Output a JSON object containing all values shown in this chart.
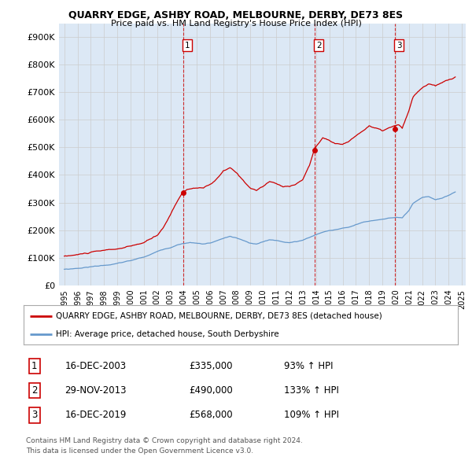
{
  "title": "QUARRY EDGE, ASHBY ROAD, MELBOURNE, DERBY, DE73 8ES",
  "subtitle": "Price paid vs. HM Land Registry's House Price Index (HPI)",
  "red_label": "QUARRY EDGE, ASHBY ROAD, MELBOURNE, DERBY, DE73 8ES (detached house)",
  "blue_label": "HPI: Average price, detached house, South Derbyshire",
  "footer1": "Contains HM Land Registry data © Crown copyright and database right 2024.",
  "footer2": "This data is licensed under the Open Government Licence v3.0.",
  "transactions": [
    {
      "num": 1,
      "date": "16-DEC-2003",
      "price": "£335,000",
      "pct": "93% ↑ HPI",
      "year": 2003.96
    },
    {
      "num": 2,
      "date": "29-NOV-2013",
      "price": "£490,000",
      "pct": "133% ↑ HPI",
      "year": 2013.91
    },
    {
      "num": 3,
      "date": "16-DEC-2019",
      "price": "£568,000",
      "pct": "109% ↑ HPI",
      "year": 2019.96
    }
  ],
  "ylim": [
    0,
    950000
  ],
  "yticks": [
    0,
    100000,
    200000,
    300000,
    400000,
    500000,
    600000,
    700000,
    800000,
    900000
  ],
  "ytick_labels": [
    "£0",
    "£100K",
    "£200K",
    "£300K",
    "£400K",
    "£500K",
    "£600K",
    "£700K",
    "£800K",
    "£900K"
  ],
  "red_color": "#cc0000",
  "blue_color": "#6699cc",
  "dashed_color": "#cc0000",
  "grid_color": "#cccccc",
  "background_color": "#ffffff",
  "plot_bg_color": "#dce8f5",
  "red_x": [
    1995.0,
    1995.083,
    1995.167,
    1995.25,
    1995.333,
    1995.417,
    1995.5,
    1995.583,
    1995.667,
    1995.75,
    1995.833,
    1995.917,
    1996.0,
    1996.083,
    1996.167,
    1996.25,
    1996.333,
    1996.417,
    1996.5,
    1996.583,
    1996.667,
    1996.75,
    1996.833,
    1996.917,
    1997.0,
    1997.083,
    1997.167,
    1997.25,
    1997.333,
    1997.417,
    1997.5,
    1997.583,
    1997.667,
    1997.75,
    1997.833,
    1997.917,
    1998.0,
    1998.083,
    1998.167,
    1998.25,
    1998.333,
    1998.417,
    1998.5,
    1998.583,
    1998.667,
    1998.75,
    1998.833,
    1998.917,
    1999.0,
    1999.083,
    1999.167,
    1999.25,
    1999.333,
    1999.417,
    1999.5,
    1999.583,
    1999.667,
    1999.75,
    1999.833,
    1999.917,
    2000.0,
    2000.083,
    2000.167,
    2000.25,
    2000.333,
    2000.417,
    2000.5,
    2000.583,
    2000.667,
    2000.75,
    2000.833,
    2000.917,
    2001.0,
    2001.083,
    2001.167,
    2001.25,
    2001.333,
    2001.417,
    2001.5,
    2001.583,
    2001.667,
    2001.75,
    2001.833,
    2001.917,
    2002.0,
    2002.083,
    2002.167,
    2002.25,
    2002.333,
    2002.417,
    2002.5,
    2002.583,
    2002.667,
    2002.75,
    2002.833,
    2002.917,
    2003.0,
    2003.083,
    2003.167,
    2003.25,
    2003.333,
    2003.417,
    2003.5,
    2003.583,
    2003.667,
    2003.75,
    2003.833,
    2003.917,
    2003.96,
    2004.0,
    2004.083,
    2004.167,
    2004.25,
    2004.333,
    2004.417,
    2004.5,
    2004.583,
    2004.667,
    2004.75,
    2004.833,
    2004.917,
    2005.0,
    2005.083,
    2005.167,
    2005.25,
    2005.333,
    2005.417,
    2005.5,
    2005.583,
    2005.667,
    2005.75,
    2005.833,
    2005.917,
    2006.0,
    2006.083,
    2006.167,
    2006.25,
    2006.333,
    2006.417,
    2006.5,
    2006.583,
    2006.667,
    2006.75,
    2006.833,
    2006.917,
    2007.0,
    2007.083,
    2007.167,
    2007.25,
    2007.333,
    2007.417,
    2007.5,
    2007.583,
    2007.667,
    2007.75,
    2007.833,
    2007.917,
    2008.0,
    2008.083,
    2008.167,
    2008.25,
    2008.333,
    2008.417,
    2008.5,
    2008.583,
    2008.667,
    2008.75,
    2008.833,
    2008.917,
    2009.0,
    2009.083,
    2009.167,
    2009.25,
    2009.333,
    2009.417,
    2009.5,
    2009.583,
    2009.667,
    2009.75,
    2009.833,
    2009.917,
    2010.0,
    2010.083,
    2010.167,
    2010.25,
    2010.333,
    2010.417,
    2010.5,
    2010.583,
    2010.667,
    2010.75,
    2010.833,
    2010.917,
    2011.0,
    2011.083,
    2011.167,
    2011.25,
    2011.333,
    2011.417,
    2011.5,
    2011.583,
    2011.667,
    2011.75,
    2011.833,
    2011.917,
    2012.0,
    2012.083,
    2012.167,
    2012.25,
    2012.333,
    2012.417,
    2012.5,
    2012.583,
    2012.667,
    2012.75,
    2012.833,
    2012.917,
    2013.0,
    2013.083,
    2013.167,
    2013.25,
    2013.333,
    2013.417,
    2013.5,
    2013.583,
    2013.667,
    2013.75,
    2013.833,
    2013.917,
    2013.91,
    2014.0,
    2014.083,
    2014.167,
    2014.25,
    2014.333,
    2014.417,
    2014.5,
    2014.583,
    2014.667,
    2014.75,
    2014.833,
    2014.917,
    2015.0,
    2015.083,
    2015.167,
    2015.25,
    2015.333,
    2015.417,
    2015.5,
    2015.583,
    2015.667,
    2015.75,
    2015.833,
    2015.917,
    2016.0,
    2016.083,
    2016.167,
    2016.25,
    2016.333,
    2016.417,
    2016.5,
    2016.583,
    2016.667,
    2016.75,
    2016.833,
    2016.917,
    2017.0,
    2017.083,
    2017.167,
    2017.25,
    2017.333,
    2017.417,
    2017.5,
    2017.583,
    2017.667,
    2017.75,
    2017.833,
    2017.917,
    2018.0,
    2018.083,
    2018.167,
    2018.25,
    2018.333,
    2018.417,
    2018.5,
    2018.583,
    2018.667,
    2018.75,
    2018.833,
    2018.917,
    2019.0,
    2019.083,
    2019.167,
    2019.25,
    2019.333,
    2019.417,
    2019.5,
    2019.583,
    2019.667,
    2019.75,
    2019.833,
    2019.917,
    2019.96,
    2020.0,
    2020.083,
    2020.167,
    2020.25,
    2020.333,
    2020.417,
    2020.5,
    2020.583,
    2020.667,
    2020.75,
    2020.833,
    2020.917,
    2021.0,
    2021.083,
    2021.167,
    2021.25,
    2021.333,
    2021.417,
    2021.5,
    2021.583,
    2021.667,
    2021.75,
    2021.833,
    2021.917,
    2022.0,
    2022.083,
    2022.167,
    2022.25,
    2022.333,
    2022.417,
    2022.5,
    2022.583,
    2022.667,
    2022.75,
    2022.833,
    2022.917,
    2023.0,
    2023.083,
    2023.167,
    2023.25,
    2023.333,
    2023.417,
    2023.5,
    2023.583,
    2023.667,
    2023.75,
    2023.833,
    2023.917,
    2024.0,
    2024.083,
    2024.167,
    2024.25,
    2024.333,
    2024.417,
    2024.5
  ],
  "blue_x": [
    1995.0,
    1995.083,
    1995.167,
    1995.25,
    1995.333,
    1995.417,
    1995.5,
    1995.583,
    1995.667,
    1995.75,
    1995.833,
    1995.917,
    1996.0,
    1996.083,
    1996.167,
    1996.25,
    1996.333,
    1996.417,
    1996.5,
    1996.583,
    1996.667,
    1996.75,
    1996.833,
    1996.917,
    1997.0,
    1997.083,
    1997.167,
    1997.25,
    1997.333,
    1997.417,
    1997.5,
    1997.583,
    1997.667,
    1997.75,
    1997.833,
    1997.917,
    1998.0,
    1998.083,
    1998.167,
    1998.25,
    1998.333,
    1998.417,
    1998.5,
    1998.583,
    1998.667,
    1998.75,
    1998.833,
    1998.917,
    1999.0,
    1999.083,
    1999.167,
    1999.25,
    1999.333,
    1999.417,
    1999.5,
    1999.583,
    1999.667,
    1999.75,
    1999.833,
    1999.917,
    2000.0,
    2000.083,
    2000.167,
    2000.25,
    2000.333,
    2000.417,
    2000.5,
    2000.583,
    2000.667,
    2000.75,
    2000.833,
    2000.917,
    2001.0,
    2001.083,
    2001.167,
    2001.25,
    2001.333,
    2001.417,
    2001.5,
    2001.583,
    2001.667,
    2001.75,
    2001.833,
    2001.917,
    2002.0,
    2002.083,
    2002.167,
    2002.25,
    2002.333,
    2002.417,
    2002.5,
    2002.583,
    2002.667,
    2002.75,
    2002.833,
    2002.917,
    2003.0,
    2003.083,
    2003.167,
    2003.25,
    2003.333,
    2003.417,
    2003.5,
    2003.583,
    2003.667,
    2003.75,
    2003.833,
    2003.917,
    2004.0,
    2004.083,
    2004.167,
    2004.25,
    2004.333,
    2004.417,
    2004.5,
    2004.583,
    2004.667,
    2004.75,
    2004.833,
    2004.917,
    2005.0,
    2005.083,
    2005.167,
    2005.25,
    2005.333,
    2005.417,
    2005.5,
    2005.583,
    2005.667,
    2005.75,
    2005.833,
    2005.917,
    2006.0,
    2006.083,
    2006.167,
    2006.25,
    2006.333,
    2006.417,
    2006.5,
    2006.583,
    2006.667,
    2006.75,
    2006.833,
    2006.917,
    2007.0,
    2007.083,
    2007.167,
    2007.25,
    2007.333,
    2007.417,
    2007.5,
    2007.583,
    2007.667,
    2007.75,
    2007.833,
    2007.917,
    2008.0,
    2008.083,
    2008.167,
    2008.25,
    2008.333,
    2008.417,
    2008.5,
    2008.583,
    2008.667,
    2008.75,
    2008.833,
    2008.917,
    2009.0,
    2009.083,
    2009.167,
    2009.25,
    2009.333,
    2009.417,
    2009.5,
    2009.583,
    2009.667,
    2009.75,
    2009.833,
    2009.917,
    2010.0,
    2010.083,
    2010.167,
    2010.25,
    2010.333,
    2010.417,
    2010.5,
    2010.583,
    2010.667,
    2010.75,
    2010.833,
    2010.917,
    2011.0,
    2011.083,
    2011.167,
    2011.25,
    2011.333,
    2011.417,
    2011.5,
    2011.583,
    2011.667,
    2011.75,
    2011.833,
    2011.917,
    2012.0,
    2012.083,
    2012.167,
    2012.25,
    2012.333,
    2012.417,
    2012.5,
    2012.583,
    2012.667,
    2012.75,
    2012.833,
    2012.917,
    2013.0,
    2013.083,
    2013.167,
    2013.25,
    2013.333,
    2013.417,
    2013.5,
    2013.583,
    2013.667,
    2013.75,
    2013.833,
    2013.917,
    2014.0,
    2014.083,
    2014.167,
    2014.25,
    2014.333,
    2014.417,
    2014.5,
    2014.583,
    2014.667,
    2014.75,
    2014.833,
    2014.917,
    2015.0,
    2015.083,
    2015.167,
    2015.25,
    2015.333,
    2015.417,
    2015.5,
    2015.583,
    2015.667,
    2015.75,
    2015.833,
    2015.917,
    2016.0,
    2016.083,
    2016.167,
    2016.25,
    2016.333,
    2016.417,
    2016.5,
    2016.583,
    2016.667,
    2016.75,
    2016.833,
    2016.917,
    2017.0,
    2017.083,
    2017.167,
    2017.25,
    2017.333,
    2017.417,
    2017.5,
    2017.583,
    2017.667,
    2017.75,
    2017.833,
    2017.917,
    2018.0,
    2018.083,
    2018.167,
    2018.25,
    2018.333,
    2018.417,
    2018.5,
    2018.583,
    2018.667,
    2018.75,
    2018.833,
    2018.917,
    2019.0,
    2019.083,
    2019.167,
    2019.25,
    2019.333,
    2019.417,
    2019.5,
    2019.583,
    2019.667,
    2019.75,
    2019.833,
    2019.917,
    2020.0,
    2020.083,
    2020.167,
    2020.25,
    2020.333,
    2020.417,
    2020.5,
    2020.583,
    2020.667,
    2020.75,
    2020.833,
    2020.917,
    2021.0,
    2021.083,
    2021.167,
    2021.25,
    2021.333,
    2021.417,
    2021.5,
    2021.583,
    2021.667,
    2021.75,
    2021.833,
    2021.917,
    2022.0,
    2022.083,
    2022.167,
    2022.25,
    2022.333,
    2022.417,
    2022.5,
    2022.583,
    2022.667,
    2022.75,
    2022.833,
    2022.917,
    2023.0,
    2023.083,
    2023.167,
    2023.25,
    2023.333,
    2023.417,
    2023.5,
    2023.583,
    2023.667,
    2023.75,
    2023.833,
    2023.917,
    2024.0,
    2024.083,
    2024.167,
    2024.25,
    2024.333,
    2024.417,
    2024.5
  ]
}
